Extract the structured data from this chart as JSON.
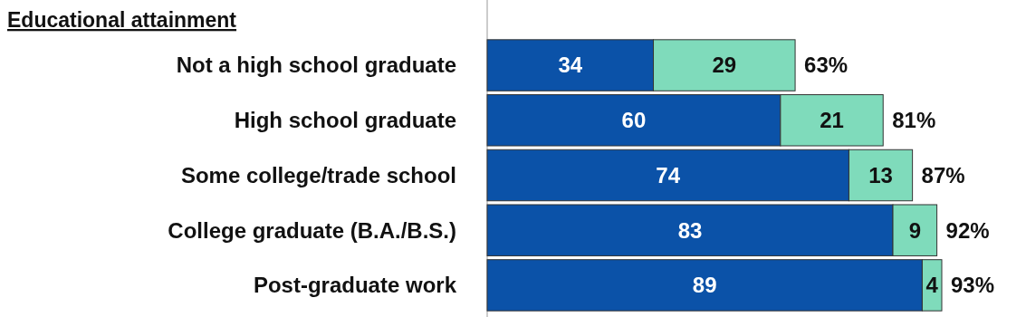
{
  "chart_data": {
    "type": "bar",
    "orientation": "horizontal",
    "stacked": true,
    "title": "Educational attainment",
    "categories": [
      "Not a high school graduate",
      "High school graduate",
      "Some college/trade school",
      "College graduate (B.A./B.S.)",
      "Post-graduate work"
    ],
    "series": [
      {
        "color": "#0b52a8",
        "values": [
          34,
          60,
          74,
          83,
          89
        ]
      },
      {
        "color": "#7fdbbb",
        "values": [
          29,
          21,
          13,
          9,
          4
        ]
      }
    ],
    "tick_labels": "y",
    "data_labels": true,
    "totals": [
      "63%",
      "81%",
      "87%",
      "92%",
      "93%"
    ]
  }
}
